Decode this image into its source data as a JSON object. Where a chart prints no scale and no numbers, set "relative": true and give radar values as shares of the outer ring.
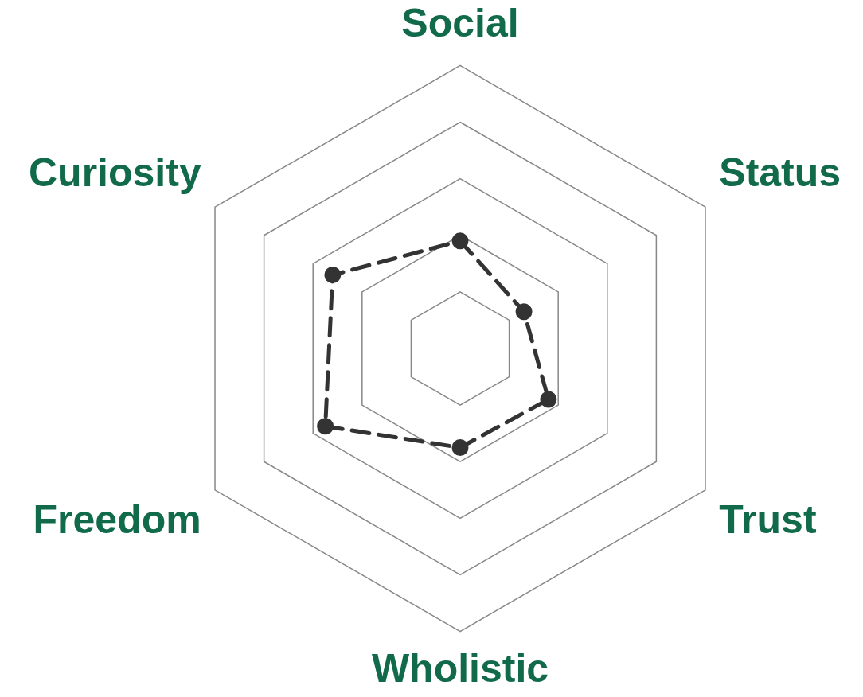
{
  "chart_data": {
    "type": "radar",
    "relative": true,
    "categories": [
      "Social",
      "Status",
      "Trust",
      "Wholistic",
      "Freedom",
      "Curiosity"
    ],
    "series": [
      {
        "color": "#333333",
        "values": [
          0.38,
          0.26,
          0.36,
          0.35,
          0.55,
          0.52
        ]
      }
    ],
    "grid": true,
    "legend": false,
    "marker": "circle",
    "line_style": "dashed"
  }
}
